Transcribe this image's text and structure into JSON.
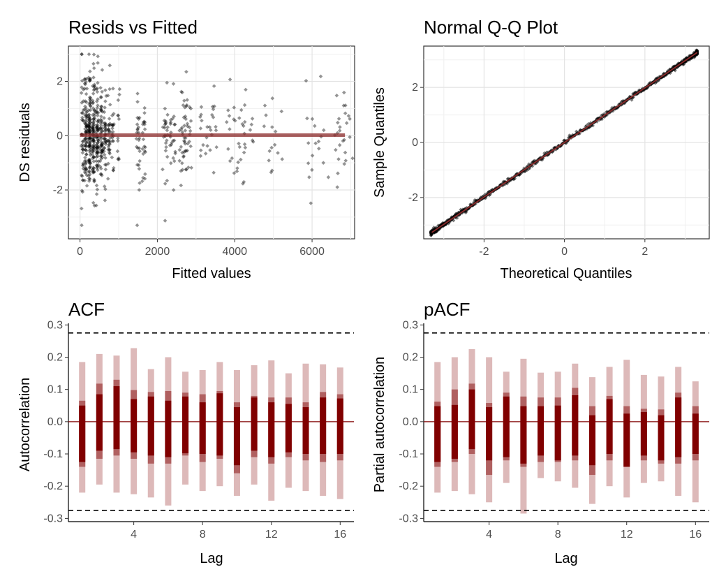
{
  "charts": [
    {
      "type": "scatter",
      "title": "Resids vs Fitted",
      "xlabel": "Fitted values",
      "ylabel": "DS residuals",
      "xlim": [
        -300,
        7100
      ],
      "ylim": [
        -3.8,
        3.3
      ],
      "xticks": [
        0,
        2000,
        4000,
        6000
      ],
      "xtick_labels": [
        "0",
        "2000",
        "4000",
        "6000"
      ],
      "yticks": [
        -2,
        0,
        2
      ],
      "ytick_labels": [
        "-2",
        "0",
        "2"
      ],
      "grid": true,
      "point_color": "#000000",
      "smooth_color": "#8b2a2a",
      "smooth_line": {
        "x": [
          0,
          6850
        ],
        "y": [
          0.02,
          0.02
        ]
      },
      "point_columns": [
        {
          "x": 60,
          "n": 40,
          "spread": 1.5
        },
        {
          "x": 150,
          "n": 70,
          "spread": 1.2
        },
        {
          "x": 250,
          "n": 90,
          "spread": 1.2
        },
        {
          "x": 350,
          "n": 80,
          "spread": 1.1
        },
        {
          "x": 450,
          "n": 70,
          "spread": 1.0
        },
        {
          "x": 550,
          "n": 55,
          "spread": 0.9
        },
        {
          "x": 650,
          "n": 40,
          "spread": 0.9
        },
        {
          "x": 750,
          "n": 30,
          "spread": 0.9
        },
        {
          "x": 850,
          "n": 20,
          "spread": 0.9
        },
        {
          "x": 1000,
          "n": 12,
          "spread": 1.0
        },
        {
          "x": 1500,
          "n": 25,
          "spread": 1.0
        },
        {
          "x": 1650,
          "n": 20,
          "spread": 1.0
        },
        {
          "x": 2200,
          "n": 25,
          "spread": 1.0
        },
        {
          "x": 2400,
          "n": 22,
          "spread": 1.0
        },
        {
          "x": 2650,
          "n": 28,
          "spread": 1.0
        },
        {
          "x": 2800,
          "n": 25,
          "spread": 1.0
        },
        {
          "x": 3200,
          "n": 12,
          "spread": 1.0
        },
        {
          "x": 3450,
          "n": 14,
          "spread": 1.0
        },
        {
          "x": 3900,
          "n": 12,
          "spread": 1.0
        },
        {
          "x": 4150,
          "n": 14,
          "spread": 1.0
        },
        {
          "x": 4350,
          "n": 10,
          "spread": 1.0
        },
        {
          "x": 4900,
          "n": 10,
          "spread": 1.0
        },
        {
          "x": 5100,
          "n": 5,
          "spread": 1.0
        },
        {
          "x": 5900,
          "n": 10,
          "spread": 1.0
        },
        {
          "x": 6250,
          "n": 8,
          "spread": 1.0
        },
        {
          "x": 6750,
          "n": 14,
          "spread": 1.0
        },
        {
          "x": 6850,
          "n": 12,
          "spread": 1.0
        }
      ]
    },
    {
      "type": "scatter",
      "title": "Normal Q-Q Plot",
      "xlabel": "Theoretical Quantiles",
      "ylabel": "Sample Quantiles",
      "xlim": [
        -3.5,
        3.6
      ],
      "ylim": [
        -3.5,
        3.5
      ],
      "xticks": [
        -2,
        0,
        2
      ],
      "xtick_labels": [
        "-2",
        "0",
        "2"
      ],
      "yticks": [
        -2,
        0,
        2
      ],
      "ytick_labels": [
        "-2",
        "0",
        "2"
      ],
      "grid": true,
      "point_color": "#000000",
      "line_color": "#8b2a2a",
      "reference_line": {
        "x": [
          -3.3,
          3.3
        ],
        "y": [
          -3.27,
          3.27
        ]
      },
      "points_range": [
        -3.32,
        3.3
      ]
    },
    {
      "type": "bar",
      "title": "ACF",
      "xlabel": "Lag",
      "ylabel": "Autocorrelation",
      "xlim": [
        0.2,
        16.8
      ],
      "ylim": [
        -0.31,
        0.305
      ],
      "xticks": [
        4,
        8,
        12,
        16
      ],
      "xtick_labels": [
        "4",
        "8",
        "12",
        "16"
      ],
      "yticks": [
        -0.3,
        -0.2,
        -0.1,
        0.0,
        0.1,
        0.2,
        0.3
      ],
      "ytick_labels": [
        "-0.3",
        "-0.2",
        "-0.1",
        "0.0",
        "0.1",
        "0.2",
        "0.3"
      ],
      "conf_limits": [
        0.275,
        -0.275
      ],
      "zero_line": 0,
      "lags": [
        1,
        2,
        3,
        4,
        5,
        6,
        7,
        8,
        9,
        10,
        11,
        12,
        13,
        14,
        15,
        16
      ],
      "outer_hi": [
        0.185,
        0.21,
        0.205,
        0.228,
        0.163,
        0.2,
        0.155,
        0.16,
        0.185,
        0.16,
        0.175,
        0.19,
        0.15,
        0.18,
        0.178,
        0.168
      ],
      "outer_lo": [
        -0.22,
        -0.195,
        -0.22,
        -0.225,
        -0.235,
        -0.26,
        -0.195,
        -0.215,
        -0.2,
        -0.23,
        -0.195,
        -0.245,
        -0.205,
        -0.215,
        -0.23,
        -0.24
      ],
      "mid_hi": [
        0.065,
        0.118,
        0.13,
        0.098,
        0.092,
        0.095,
        0.09,
        0.085,
        0.095,
        0.06,
        0.08,
        0.075,
        0.075,
        0.06,
        0.092,
        0.085
      ],
      "mid_lo": [
        -0.14,
        -0.115,
        -0.105,
        -0.115,
        -0.13,
        -0.13,
        -0.105,
        -0.125,
        -0.115,
        -0.16,
        -0.11,
        -0.13,
        -0.11,
        -0.12,
        -0.125,
        -0.12
      ],
      "inner_hi": [
        0.05,
        0.085,
        0.11,
        0.07,
        0.078,
        0.065,
        0.078,
        0.06,
        0.088,
        0.045,
        0.075,
        0.06,
        0.055,
        0.045,
        0.075,
        0.072
      ],
      "inner_lo": [
        -0.125,
        -0.09,
        -0.085,
        -0.095,
        -0.105,
        -0.11,
        -0.098,
        -0.1,
        -0.105,
        -0.135,
        -0.09,
        -0.11,
        -0.095,
        -0.1,
        -0.1,
        -0.1
      ],
      "colors": {
        "outer": "#ddb9b9",
        "mid": "#b06060",
        "inner": "#800000",
        "conf": "#000000"
      }
    },
    {
      "type": "bar",
      "title": "pACF",
      "xlabel": "Lag",
      "ylabel": "Partial autocorrelation",
      "xlim": [
        0.2,
        16.8
      ],
      "ylim": [
        -0.31,
        0.305
      ],
      "xticks": [
        4,
        8,
        12,
        16
      ],
      "xtick_labels": [
        "4",
        "8",
        "12",
        "16"
      ],
      "yticks": [
        -0.3,
        -0.2,
        -0.1,
        0.0,
        0.1,
        0.2,
        0.3
      ],
      "ytick_labels": [
        "-0.3",
        "-0.2",
        "-0.1",
        "0.0",
        "0.1",
        "0.2",
        "0.3"
      ],
      "conf_limits": [
        0.275,
        -0.275
      ],
      "zero_line": 0,
      "lags": [
        1,
        2,
        3,
        4,
        5,
        6,
        7,
        8,
        9,
        10,
        11,
        12,
        13,
        14,
        15,
        16
      ],
      "outer_hi": [
        0.185,
        0.2,
        0.225,
        0.2,
        0.155,
        0.195,
        0.152,
        0.155,
        0.18,
        0.138,
        0.17,
        0.192,
        0.145,
        0.14,
        0.17,
        0.125
      ],
      "outer_lo": [
        -0.22,
        -0.215,
        -0.225,
        -0.25,
        -0.19,
        -0.285,
        -0.175,
        -0.185,
        -0.205,
        -0.255,
        -0.2,
        -0.235,
        -0.19,
        -0.185,
        -0.23,
        -0.25
      ],
      "mid_hi": [
        0.062,
        0.1,
        0.118,
        0.058,
        0.09,
        0.078,
        0.075,
        0.075,
        0.105,
        0.048,
        0.08,
        0.048,
        0.04,
        0.038,
        0.09,
        0.048
      ],
      "mid_lo": [
        -0.14,
        -0.125,
        -0.1,
        -0.165,
        -0.12,
        -0.14,
        -0.125,
        -0.125,
        -0.12,
        -0.165,
        -0.12,
        -0.14,
        -0.12,
        -0.13,
        -0.13,
        -0.12
      ],
      "inner_hi": [
        0.048,
        0.052,
        0.1,
        0.045,
        0.078,
        0.048,
        0.048,
        0.05,
        0.082,
        0.02,
        0.07,
        0.025,
        0.03,
        0.02,
        0.075,
        0.025
      ],
      "inner_lo": [
        -0.125,
        -0.115,
        -0.085,
        -0.12,
        -0.11,
        -0.13,
        -0.105,
        -0.12,
        -0.105,
        -0.135,
        -0.1,
        -0.14,
        -0.105,
        -0.12,
        -0.11,
        -0.1
      ],
      "colors": {
        "outer": "#ddb9b9",
        "mid": "#b06060",
        "inner": "#800000",
        "conf": "#000000"
      }
    }
  ]
}
